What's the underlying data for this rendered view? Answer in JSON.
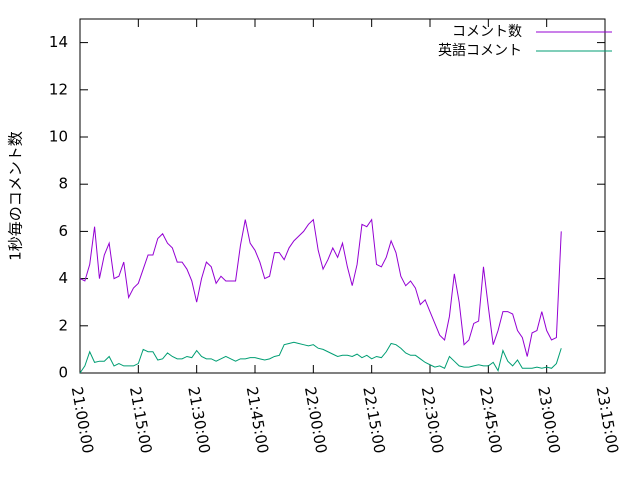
{
  "chart_data": {
    "type": "line",
    "y_label": "1秒毎のコメント数",
    "x": [
      "21:00:00",
      "21:01:15",
      "21:02:30",
      "21:03:45",
      "21:05:00",
      "21:06:15",
      "21:07:30",
      "21:08:45",
      "21:10:00",
      "21:11:15",
      "21:12:30",
      "21:13:45",
      "21:15:00",
      "21:16:15",
      "21:17:30",
      "21:18:45",
      "21:20:00",
      "21:21:15",
      "21:22:30",
      "21:23:45",
      "21:25:00",
      "21:26:15",
      "21:27:30",
      "21:28:45",
      "21:30:00",
      "21:31:15",
      "21:32:30",
      "21:33:45",
      "21:35:00",
      "21:36:15",
      "21:37:30",
      "21:38:45",
      "21:40:00",
      "21:41:15",
      "21:42:30",
      "21:43:45",
      "21:45:00",
      "21:46:15",
      "21:47:30",
      "21:48:45",
      "21:50:00",
      "21:51:15",
      "21:52:30",
      "21:53:45",
      "21:55:00",
      "21:56:15",
      "21:57:30",
      "21:58:45",
      "22:00:00",
      "22:01:15",
      "22:02:30",
      "22:03:45",
      "22:05:00",
      "22:06:15",
      "22:07:30",
      "22:08:45",
      "22:10:00",
      "22:11:15",
      "22:12:30",
      "22:13:45",
      "22:15:00",
      "22:16:15",
      "22:17:30",
      "22:18:45",
      "22:20:00",
      "22:21:15",
      "22:22:30",
      "22:23:45",
      "22:25:00",
      "22:26:15",
      "22:27:30",
      "22:28:45",
      "22:30:00",
      "22:31:15",
      "22:32:30",
      "22:33:45",
      "22:35:00",
      "22:36:15",
      "22:37:30",
      "22:38:45",
      "22:40:00",
      "22:41:15",
      "22:42:30",
      "22:43:45",
      "22:45:00",
      "22:46:15",
      "22:47:30",
      "22:48:45",
      "22:50:00",
      "22:51:15",
      "22:52:30",
      "22:53:45",
      "22:55:00",
      "22:56:15",
      "22:57:30",
      "22:58:45",
      "23:00:00",
      "23:01:15",
      "23:02:30",
      "23:03:45"
    ],
    "series": [
      {
        "name": "コメント数",
        "color": "#9400d3",
        "values": [
          4.0,
          3.9,
          4.6,
          6.2,
          4.0,
          5.0,
          5.5,
          4.0,
          4.1,
          4.7,
          3.2,
          3.6,
          3.8,
          4.4,
          5.0,
          5.0,
          5.7,
          5.9,
          5.5,
          5.3,
          4.7,
          4.7,
          4.4,
          3.9,
          3.0,
          4.0,
          4.7,
          4.5,
          3.8,
          4.1,
          3.9,
          3.9,
          3.9,
          5.4,
          6.5,
          5.5,
          5.2,
          4.7,
          4.0,
          4.1,
          5.1,
          5.1,
          4.8,
          5.3,
          5.6,
          5.8,
          6.0,
          6.3,
          6.5,
          5.2,
          4.4,
          4.8,
          5.3,
          4.9,
          5.5,
          4.5,
          3.7,
          4.6,
          6.3,
          6.2,
          6.5,
          4.6,
          4.5,
          4.9,
          5.6,
          5.1,
          4.1,
          3.7,
          3.9,
          3.6,
          2.9,
          3.1,
          2.6,
          2.1,
          1.6,
          1.4,
          2.4,
          4.2,
          3.0,
          1.2,
          1.4,
          2.1,
          2.2,
          4.5,
          2.8,
          1.2,
          1.8,
          2.6,
          2.6,
          2.5,
          1.8,
          1.5,
          0.7,
          1.7,
          1.8,
          2.6,
          1.8,
          1.4,
          1.5,
          6.0
        ]
      },
      {
        "name": "英語コメント",
        "color": "#009e73",
        "values": [
          0.0,
          0.3,
          0.9,
          0.45,
          0.5,
          0.5,
          0.7,
          0.3,
          0.4,
          0.3,
          0.3,
          0.3,
          0.4,
          1.0,
          0.9,
          0.9,
          0.55,
          0.6,
          0.85,
          0.7,
          0.6,
          0.6,
          0.7,
          0.65,
          0.95,
          0.7,
          0.6,
          0.6,
          0.5,
          0.6,
          0.7,
          0.6,
          0.5,
          0.6,
          0.6,
          0.65,
          0.65,
          0.6,
          0.55,
          0.6,
          0.7,
          0.75,
          1.2,
          1.25,
          1.3,
          1.25,
          1.2,
          1.15,
          1.2,
          1.05,
          1.0,
          0.9,
          0.8,
          0.7,
          0.75,
          0.75,
          0.7,
          0.8,
          0.65,
          0.75,
          0.6,
          0.7,
          0.65,
          0.9,
          1.25,
          1.2,
          1.05,
          0.85,
          0.75,
          0.75,
          0.6,
          0.45,
          0.35,
          0.25,
          0.3,
          0.2,
          0.7,
          0.5,
          0.3,
          0.25,
          0.25,
          0.3,
          0.35,
          0.3,
          0.3,
          0.45,
          0.1,
          0.95,
          0.5,
          0.3,
          0.55,
          0.2,
          0.2,
          0.2,
          0.25,
          0.2,
          0.25,
          0.2,
          0.4,
          1.05
        ]
      }
    ],
    "xlim": [
      "21:00:00",
      "23:15:00"
    ],
    "xticks": [
      "21:00:00",
      "21:15:00",
      "21:30:00",
      "21:45:00",
      "22:00:00",
      "22:15:00",
      "22:30:00",
      "22:45:00",
      "23:00:00",
      "23:15:00"
    ],
    "ylim": [
      0,
      15
    ],
    "yticks": [
      0,
      2,
      4,
      6,
      8,
      10,
      12,
      14
    ],
    "legend": "top-right",
    "grid": false
  }
}
